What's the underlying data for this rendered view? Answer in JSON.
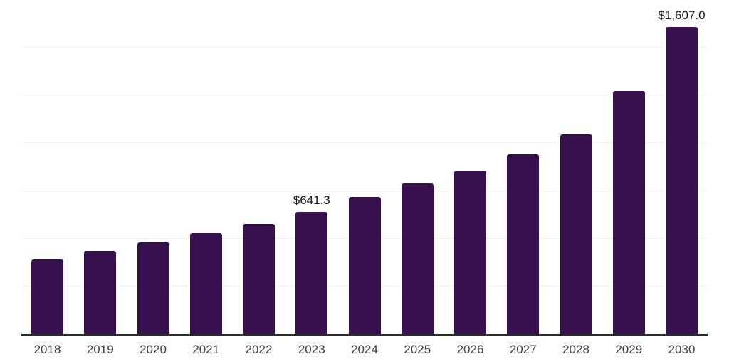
{
  "chart_data": {
    "type": "bar",
    "categories": [
      "2018",
      "2019",
      "2020",
      "2021",
      "2022",
      "2023",
      "2024",
      "2025",
      "2026",
      "2027",
      "2028",
      "2029",
      "2030"
    ],
    "values": [
      390,
      437,
      480,
      527,
      579,
      641.3,
      720,
      790,
      856,
      942,
      1046,
      1272,
      1607.0
    ],
    "value_labels": [
      {
        "category": "2023",
        "text": "$641.3"
      },
      {
        "category": "2030",
        "text": "$1,607.0"
      }
    ],
    "xlabel": "",
    "ylabel": "",
    "y_axis_tick_labels_visible": false,
    "ylim": [
      0,
      1750
    ],
    "gridline_step": 250,
    "grid": true,
    "legend_position": "none",
    "colors": {
      "bar": "#37114E",
      "gridline": "#F2F2F2",
      "axis": "#2B2B2B",
      "x_tick_label": "#3D3D3D",
      "value_label": "#141414",
      "background": "#FFFFFF"
    }
  }
}
